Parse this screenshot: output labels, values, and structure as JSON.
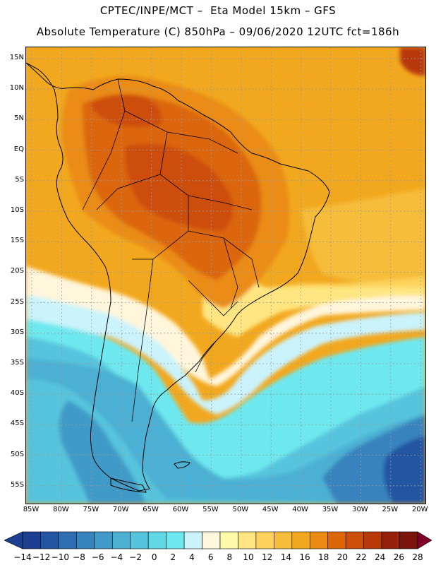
{
  "header": {
    "line1": "CPTEC/INPE/MCT –  Eta Model 15km – GFS",
    "line2": "Absolute Temperature (C) 850hPa – 09/06/2020 12UTC fct=186h"
  },
  "map": {
    "lat_labels": [
      "15N",
      "10N",
      "5N",
      "EQ",
      "5S",
      "10S",
      "15S",
      "20S",
      "25S",
      "30S",
      "35S",
      "40S",
      "45S",
      "50S",
      "55S"
    ],
    "lon_labels": [
      "85W",
      "80W",
      "75W",
      "70W",
      "65W",
      "60W",
      "55W",
      "50W",
      "45W",
      "40W",
      "35W",
      "30W",
      "25W",
      "20W"
    ]
  },
  "colorbar": {
    "labels": [
      "-14",
      "-12",
      "-10",
      "-8",
      "-6",
      "-4",
      "-2",
      "0",
      "2",
      "4",
      "6",
      "8",
      "10",
      "12",
      "14",
      "16",
      "18",
      "20",
      "22",
      "24",
      "26",
      "28"
    ],
    "colors": [
      "#1c3f91",
      "#2455a2",
      "#2e6db1",
      "#3783bd",
      "#419ac8",
      "#4cb0d3",
      "#56c4dd",
      "#62d8e6",
      "#6ee8ef",
      "#cbf3fb",
      "#fff6dc",
      "#fffaa9",
      "#ffe682",
      "#fdd35c",
      "#f6bd3b",
      "#f2a81e",
      "#ea8c14",
      "#dc6608",
      "#cd4e08",
      "#b83808",
      "#952109",
      "#7a150c"
    ]
  }
}
